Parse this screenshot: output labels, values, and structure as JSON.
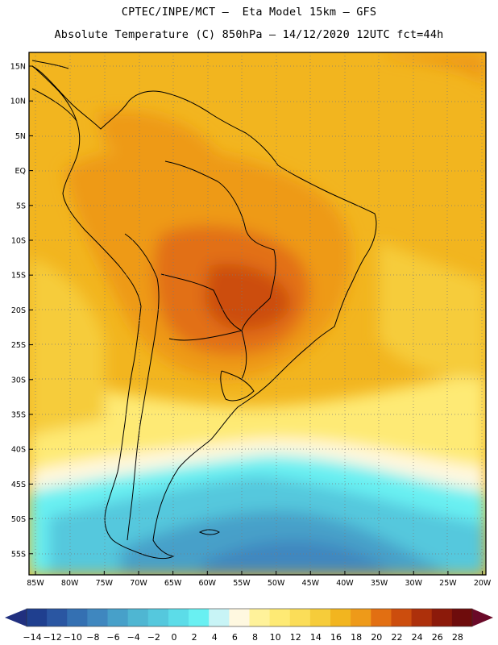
{
  "title_line1": "CPTEC/INPE/MCT –  Eta Model 15km – GFS",
  "title_line2": "Absolute Temperature (C) 850hPa – 14/12/2020 12UTC fct=44h",
  "lat_labels": [
    "15N",
    "10N",
    "5N",
    "EQ",
    "5S",
    "10S",
    "15S",
    "20S",
    "25S",
    "30S",
    "35S",
    "40S",
    "45S",
    "50S",
    "55S"
  ],
  "lon_labels": [
    "85W",
    "80W",
    "75W",
    "70W",
    "65W",
    "60W",
    "55W",
    "50W",
    "45W",
    "40W",
    "35W",
    "30W",
    "25W",
    "20W"
  ],
  "colorbar": {
    "ticks": [
      "-14",
      "-12",
      "-10",
      "-8",
      "-6",
      "-4",
      "-2",
      "0",
      "2",
      "4",
      "6",
      "8",
      "10",
      "12",
      "14",
      "16",
      "18",
      "20",
      "22",
      "24",
      "26",
      "28"
    ],
    "colors": [
      "#1f3f8f",
      "#2a56a2",
      "#3470b2",
      "#3f87bf",
      "#47a0c9",
      "#4fb6d2",
      "#55c8dd",
      "#5cdce8",
      "#69f0f2",
      "#c8f4f6",
      "#fff8e0",
      "#fff29a",
      "#feea74",
      "#fbdd58",
      "#f6cc3a",
      "#f2b51f",
      "#ee9a19",
      "#e26f12",
      "#cc4d0d",
      "#ad300b",
      "#8c1a0a",
      "#6e0c0c"
    ]
  },
  "palette": {
    "deep_cold": "#3f87bf",
    "cold": "#47a0c9",
    "cool": "#55c8dd",
    "cyan": "#69f0f2",
    "pale": "#fff8e0",
    "light_yellow": "#feea74",
    "yellow": "#f6cc3a",
    "orange_light": "#f2b51f",
    "orange": "#ee9a19",
    "orange_dark": "#e26f12",
    "hot": "#cc4d0d"
  }
}
